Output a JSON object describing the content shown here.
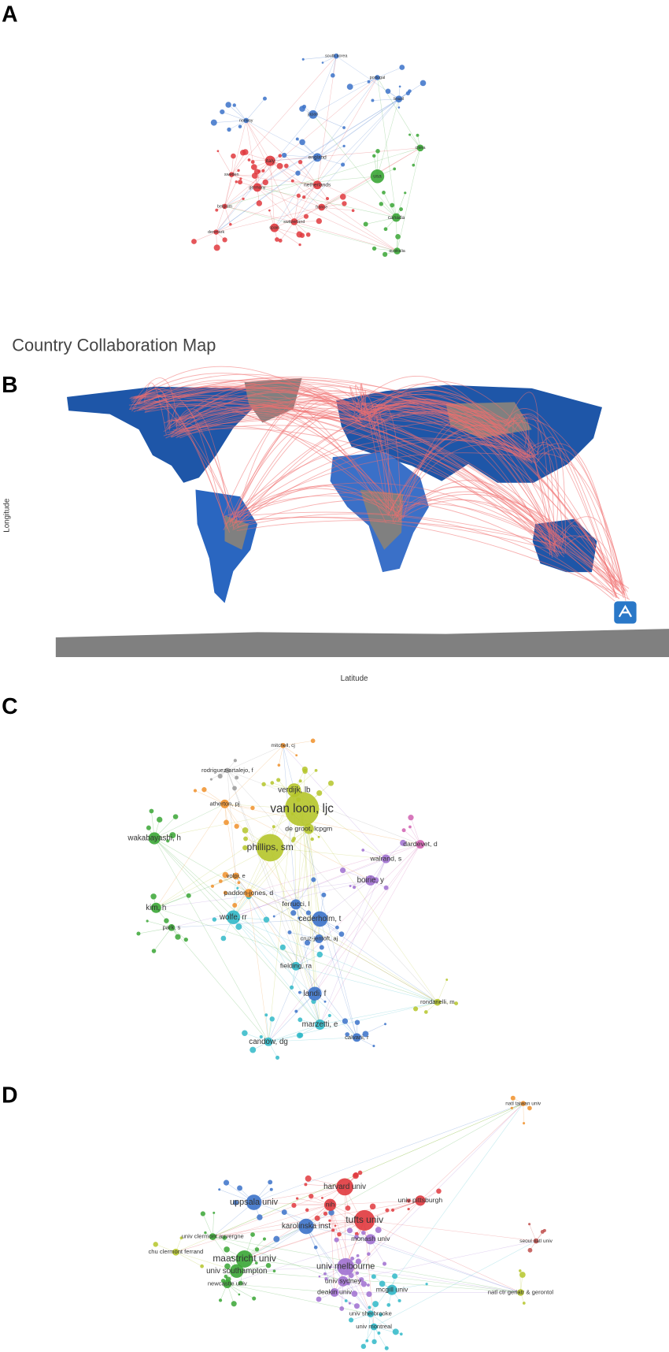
{
  "panels": [
    {
      "label": "A",
      "nodes": [
        {
          "label": "usa"
        },
        {
          "label": "england"
        },
        {
          "label": "italy"
        },
        {
          "label": "netherlands"
        },
        {
          "label": "canada"
        },
        {
          "label": "japan"
        },
        {
          "label": "brazil"
        },
        {
          "label": "france"
        },
        {
          "label": "spain"
        },
        {
          "label": "germany"
        },
        {
          "label": "switzerland"
        },
        {
          "label": "australia"
        },
        {
          "label": "china"
        },
        {
          "label": "sweden"
        },
        {
          "label": "denmark"
        },
        {
          "label": "belgium"
        },
        {
          "label": "south korea"
        },
        {
          "label": "portugal"
        },
        {
          "label": "norway"
        }
      ]
    },
    {
      "label": "B",
      "title": "Country Collaboration Map",
      "y_axis_label": "Longitude",
      "x_axis_label": "Latitude"
    },
    {
      "label": "C",
      "nodes": [
        {
          "label": "van loon, ljc"
        },
        {
          "label": "verdijk, lb"
        },
        {
          "label": "phillips, sm"
        },
        {
          "label": "de groot, lcpgm"
        },
        {
          "label": "rodriguez-artalejo, f"
        },
        {
          "label": "wakabayashi, h"
        },
        {
          "label": "atherton, pj"
        },
        {
          "label": "dardevet, d"
        },
        {
          "label": "walrand, s"
        },
        {
          "label": "boirie, y"
        },
        {
          "label": "paddon-jones, d"
        },
        {
          "label": "ferrucci, l"
        },
        {
          "label": "wolfe, rr"
        },
        {
          "label": "cederholm, t"
        },
        {
          "label": "kim, h"
        },
        {
          "label": "park, s"
        },
        {
          "label": "cruz-jentoft, aj"
        },
        {
          "label": "fielding, ra"
        },
        {
          "label": "landi, f"
        },
        {
          "label": "marzetti, e"
        },
        {
          "label": "candow, dg"
        },
        {
          "label": "calvani, r"
        },
        {
          "label": "rondanelli, m"
        },
        {
          "label": "mitchell, cj"
        },
        {
          "label": "volpi, e"
        }
      ]
    },
    {
      "label": "D",
      "nodes": [
        {
          "label": "harvard univ"
        },
        {
          "label": "nih"
        },
        {
          "label": "tufts univ"
        },
        {
          "label": "univ pittsburgh"
        },
        {
          "label": "uppsala univ"
        },
        {
          "label": "karolinska inst"
        },
        {
          "label": "univ clermont auvergne"
        },
        {
          "label": "monash univ"
        },
        {
          "label": "chu clermont ferrand"
        },
        {
          "label": "maastricht univ"
        },
        {
          "label": "univ melbourne"
        },
        {
          "label": "univ southampton"
        },
        {
          "label": "univ sydney"
        },
        {
          "label": "newcastle univ"
        },
        {
          "label": "mcgill univ"
        },
        {
          "label": "deakin univ"
        },
        {
          "label": "univ sherbrooke"
        },
        {
          "label": "univ montreal"
        },
        {
          "label": "natl taiwan univ"
        },
        {
          "label": "natl ctr geriatr & gerontol"
        },
        {
          "label": "seoul natl univ"
        }
      ]
    }
  ]
}
